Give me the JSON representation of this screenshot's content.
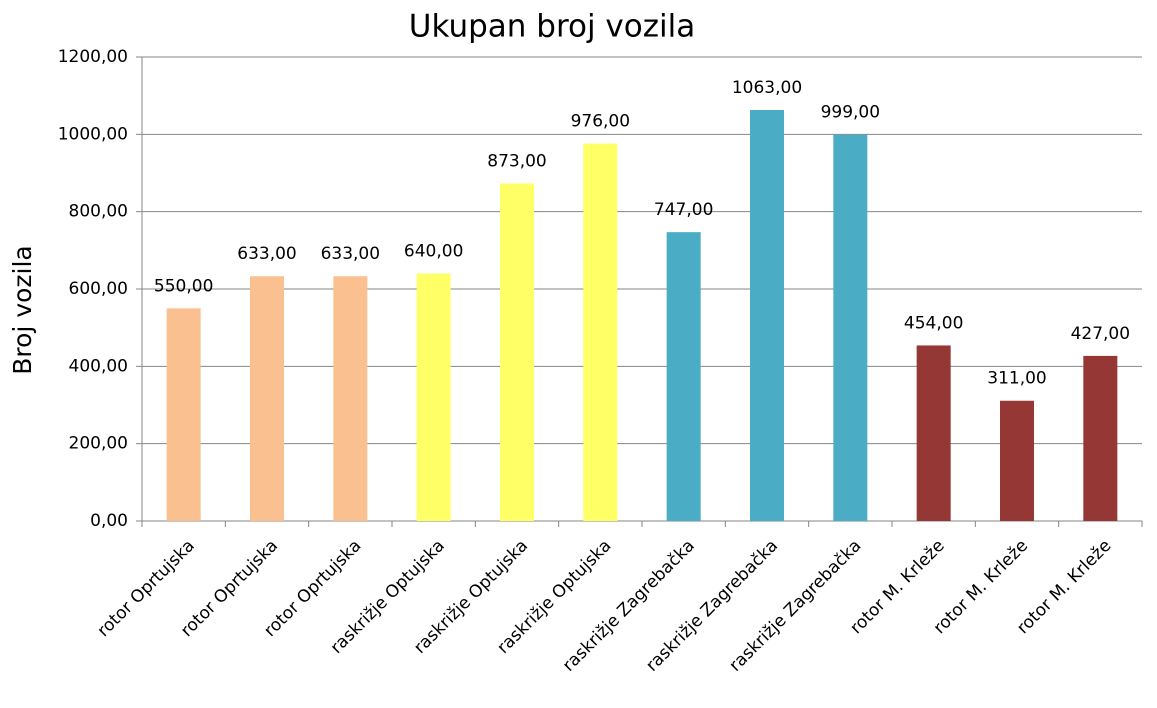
{
  "chart_data": {
    "type": "bar",
    "title": "Ukupan broj vozila",
    "y_label": "Broj vozila",
    "categories": [
      "rotor Oprtujska",
      "rotor Oprtujska",
      "rotor Oprtujska",
      "raskrižje Optujska",
      "raskrižje Optujska",
      "raskrižje Optujska",
      "raskrižje Zagrebačka",
      "raskrižje Zagrebačka",
      "raskrižje Zagrebačka",
      "rotor M. Krleže",
      "rotor M. Krleže",
      "rotor M. Krleže"
    ],
    "values": [
      550,
      633,
      633,
      640,
      873,
      976,
      747,
      1063,
      999,
      454,
      311,
      427
    ],
    "value_labels": [
      "550,00",
      "633,00",
      "633,00",
      "640,00",
      "873,00",
      "976,00",
      "747,00",
      "1063,00",
      "999,00",
      "454,00",
      "311,00",
      "427,00"
    ],
    "colors": [
      "#fac090",
      "#fac090",
      "#fac090",
      "#ffff66",
      "#ffff66",
      "#ffff66",
      "#4bacc6",
      "#4bacc6",
      "#4bacc6",
      "#953735",
      "#953735",
      "#953735"
    ],
    "ylim": [
      0,
      1200
    ],
    "yticks": [
      {
        "value": 0,
        "label": "0,00"
      },
      {
        "value": 200,
        "label": "200,00"
      },
      {
        "value": 400,
        "label": "400,00"
      },
      {
        "value": 600,
        "label": "600,00"
      },
      {
        "value": 800,
        "label": "800,00"
      },
      {
        "value": 1000,
        "label": "1000,00"
      },
      {
        "value": 1200,
        "label": "1200,00"
      }
    ],
    "grid": true
  }
}
